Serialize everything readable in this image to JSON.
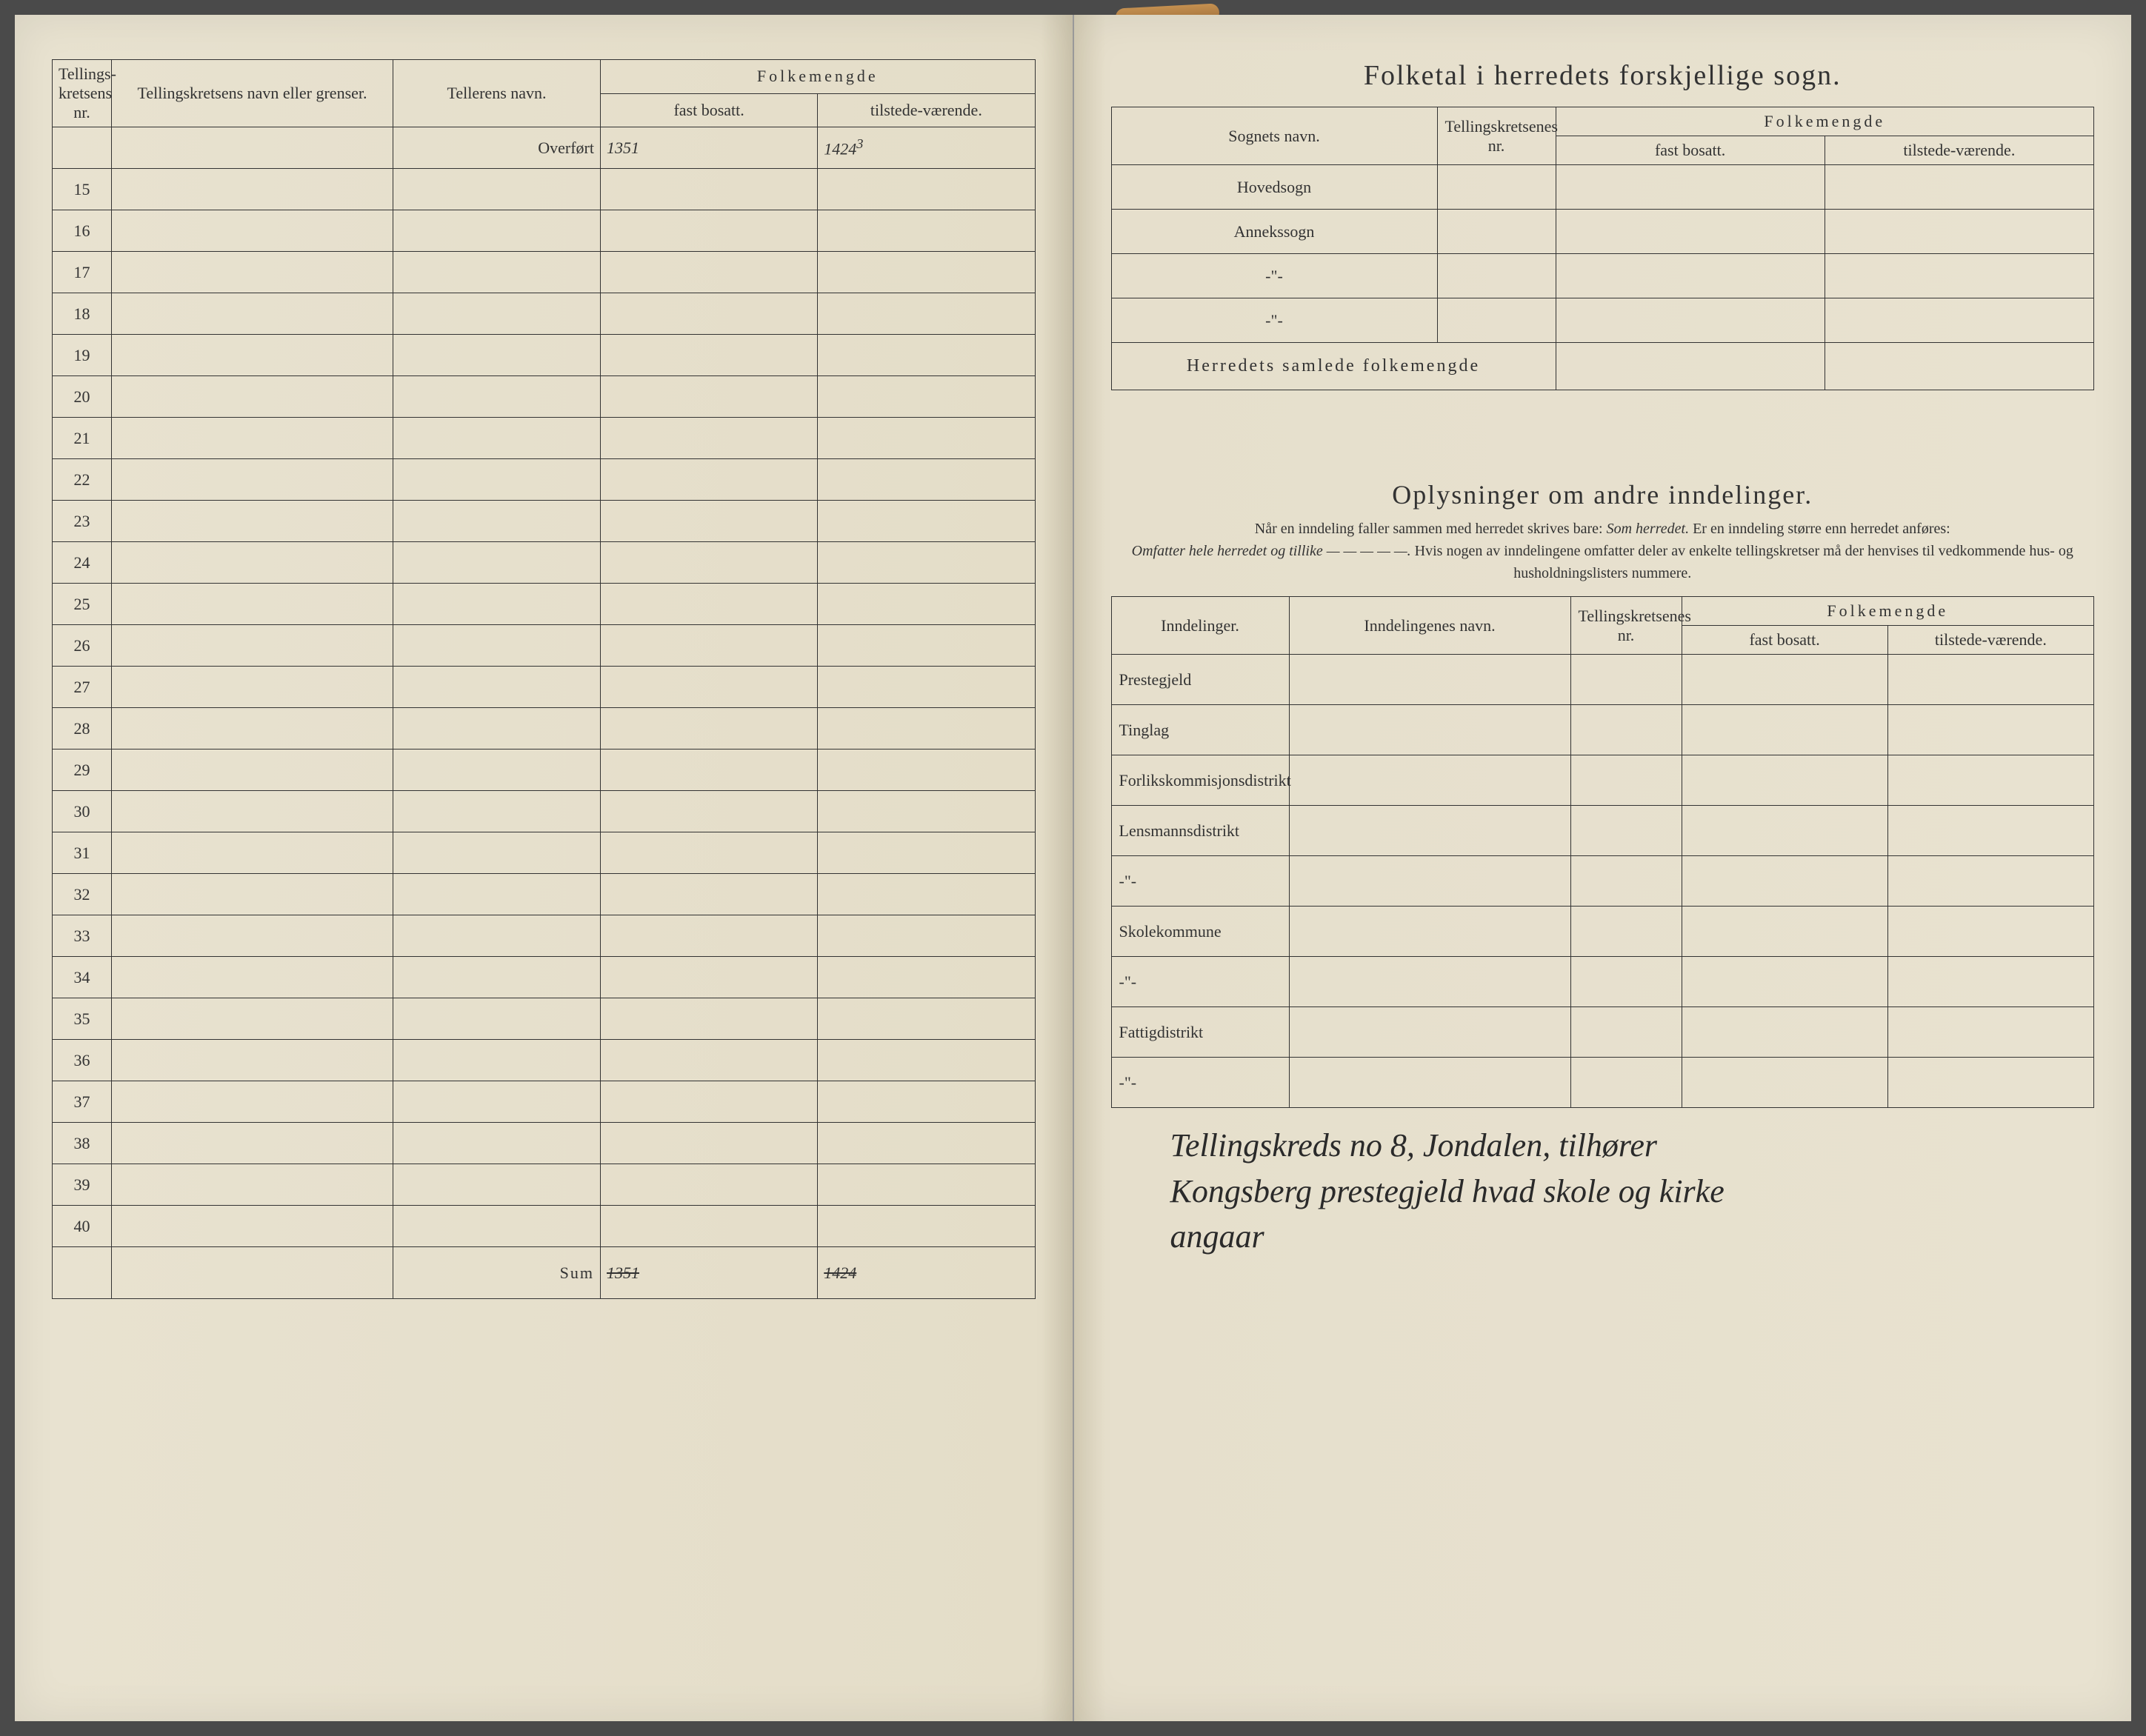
{
  "left": {
    "headers": {
      "nr": "Tellings-kretsens nr.",
      "name": "Tellingskretsens navn eller grenser.",
      "teller": "Tellerens navn.",
      "folkemengde": "Folkemengde",
      "fast": "fast bosatt.",
      "tilstede": "tilstede-værende."
    },
    "overfort_label": "Overført",
    "overfort_fast": "1351",
    "overfort_fast_above": "",
    "overfort_til": "1424",
    "overfort_til_sup": "3",
    "rows": [
      15,
      16,
      17,
      18,
      19,
      20,
      21,
      22,
      23,
      24,
      25,
      26,
      27,
      28,
      29,
      30,
      31,
      32,
      33,
      34,
      35,
      36,
      37,
      38,
      39,
      40
    ],
    "sum_label": "Sum",
    "sum_fast": "1351",
    "sum_til": "1424"
  },
  "right": {
    "title": "Folketal i herredets forskjellige sogn.",
    "headers": {
      "sogn": "Sognets navn.",
      "nr": "Tellingskretsenes nr.",
      "folkemengde": "Folkemengde",
      "fast": "fast bosatt.",
      "tilstede": "tilstede-værende."
    },
    "sogn_rows": [
      "Hovedsogn",
      "Annekssogn",
      "-\"-",
      "-\"-"
    ],
    "herredets": "Herredets samlede folkemengde",
    "section2_title": "Oplysninger om andre inndelinger.",
    "section2_sub_1": "Når en inndeling faller sammen med herredet skrives bare:",
    "section2_sub_2": "Som herredet.",
    "section2_sub_3": "Er en inndeling større enn herredet anføres:",
    "section2_sub_4": "Omfatter hele herredet og tillike — — — — —.",
    "section2_sub_5": "Hvis nogen av inndelingene omfatter deler av enkelte tellingskretser må der henvises til vedkommende hus- og husholdningslisters nummere.",
    "inndel_headers": {
      "inndelinger": "Inndelinger.",
      "navn": "Inndelingenes navn.",
      "nr": "Tellingskretsenes nr.",
      "folkemengde": "Folkemengde",
      "fast": "fast bosatt.",
      "tilstede": "tilstede-værende."
    },
    "inndel_rows": [
      "Prestegjeld",
      "Tinglag",
      "Forlikskommisjonsdistrikt",
      "Lensmannsdistrikt",
      "-\"-",
      "Skolekommune",
      "-\"-",
      "Fattigdistrikt",
      "-\"-"
    ],
    "hand_note_1": "Tellingskreds no 8, Jondalen, tilhører",
    "hand_note_2": "Kongsberg prestegjeld hvad skole og kirke",
    "hand_note_3": "angaar"
  }
}
